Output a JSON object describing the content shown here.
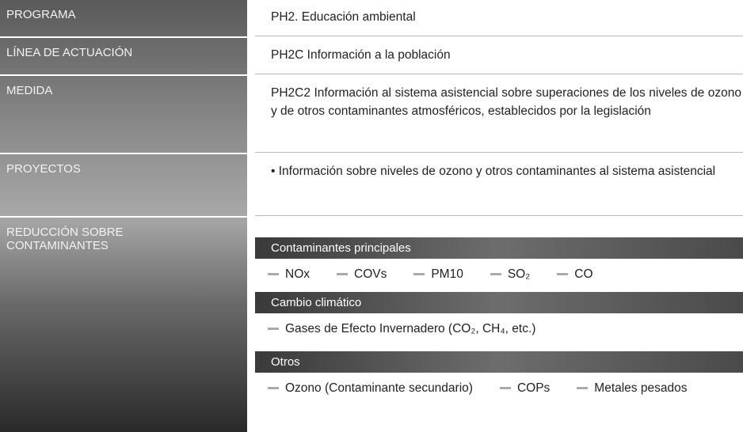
{
  "rows": [
    {
      "label": "PROGRAMA",
      "content": "PH2. Educación ambiental"
    },
    {
      "label": "LÍNEA DE ACTUACIÓN",
      "content": "PH2C Información a la población"
    },
    {
      "label": "MEDIDA",
      "content": "PH2C2 Información al sistema asistencial sobre superaciones de los niveles de ozono y de otros contaminantes atmosféricos, establecidos por la legislación"
    },
    {
      "label": "PROYECTOS",
      "content": "• Información sobre niveles de ozono y otros contaminantes al sistema asistencial"
    }
  ],
  "reduction": {
    "label": "REDUCCIÓN SOBRE CONTAMINANTES",
    "groups": [
      {
        "title": "Contaminantes principales",
        "items": [
          "NOx",
          "COVs",
          "PM10",
          "SO₂",
          "CO"
        ]
      },
      {
        "title": "Cambio climático",
        "items": [
          "Gases de Efecto Invernadero (CO₂, CH₄, etc.)"
        ]
      },
      {
        "title": "Otros",
        "items": [
          "Ozono (Contaminante secundario)",
          "COPs",
          "Metales pesados"
        ]
      }
    ]
  }
}
